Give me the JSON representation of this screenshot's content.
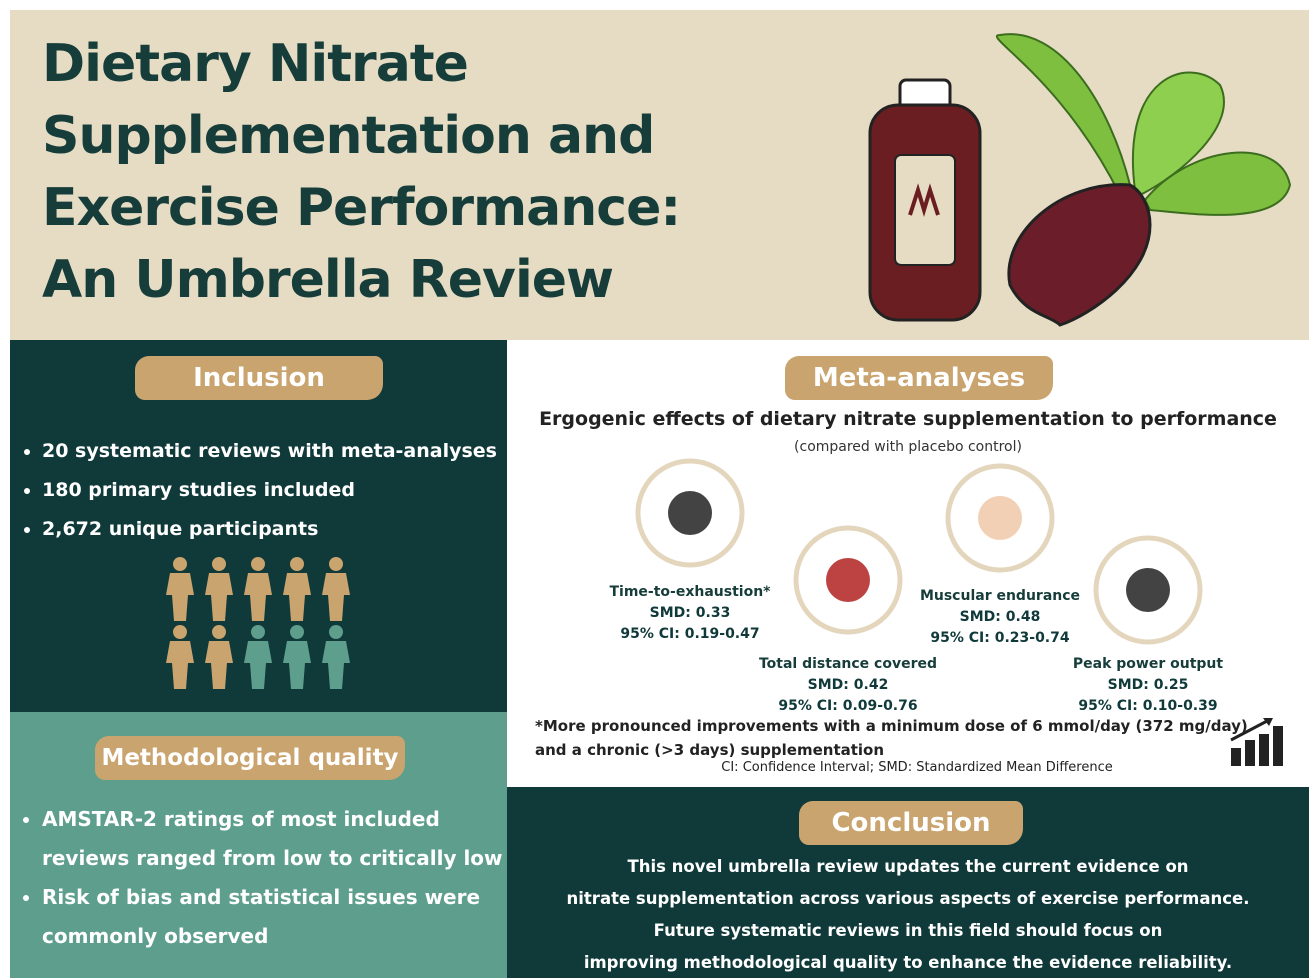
{
  "header": {
    "title_lines": [
      "Dietary Nitrate",
      "Supplementation and",
      "Exercise Performance:",
      "An Umbrella Review"
    ]
  },
  "inclusion": {
    "heading": "Inclusion",
    "items": [
      "20 systematic reviews with meta-analyses",
      "180 primary studies included",
      "2,672 unique participants"
    ]
  },
  "quality": {
    "heading": "Methodological quality",
    "items": [
      "AMSTAR-2 ratings of most included reviews ranged from low to critically low",
      "Risk of bias and statistical issues were commonly observed"
    ]
  },
  "meta": {
    "heading": "Meta-analyses",
    "subtitle": "Ergogenic effects of dietary nitrate supplementation to performance",
    "note": "(compared with placebo control)",
    "outcomes": [
      {
        "label": "Time-to-exhaustion*",
        "smd": "SMD: 0.33",
        "ci": "95% CI: 0.19-0.47"
      },
      {
        "label": "Total distance covered",
        "smd": "SMD: 0.42",
        "ci": "95% CI: 0.09-0.76"
      },
      {
        "label": "Muscular endurance",
        "smd": "SMD: 0.48",
        "ci": "95% CI: 0.23-0.74"
      },
      {
        "label": "Peak power output",
        "smd": "SMD: 0.25",
        "ci": "95% CI: 0.10-0.39"
      }
    ],
    "footnote_lines": [
      "*More pronounced improvements with a minimum dose of 6 mmol/day (372 mg/day)",
      "and a chronic (>3 days) supplementation"
    ],
    "abbreviations": "CI: Confidence Interval; SMD: Standardized Mean Difference"
  },
  "conclusion": {
    "heading": "Conclusion",
    "lines": [
      "This novel umbrella review updates the current evidence on",
      "nitrate supplementation across various aspects of exercise performance.",
      "Future systematic reviews in this field should focus on",
      "improving methodological quality to enhance the evidence reliability."
    ]
  }
}
